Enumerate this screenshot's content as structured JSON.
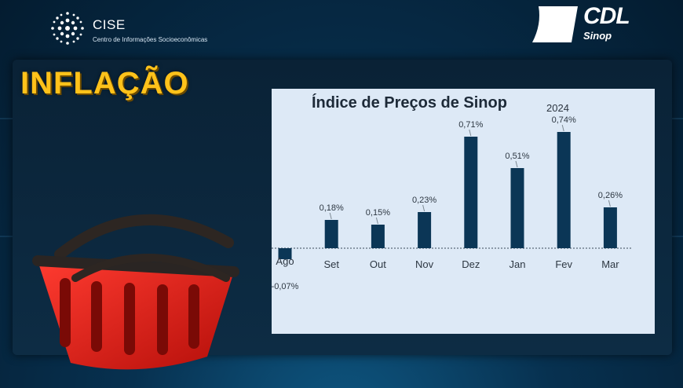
{
  "header": {
    "cise_name": "CISE",
    "cise_subtitle": "Centro de Informações Socioeconômicas",
    "cdl_name": "CDL",
    "cdl_city": "Sinop"
  },
  "banner_title": "INFLAÇÃO",
  "colors": {
    "title": "#ffc21a",
    "bar": "#0b3656",
    "card": "#dde9f6"
  },
  "chart_data": {
    "type": "bar",
    "title": "Índice de Preços de Sinop",
    "year_label": "2024",
    "categories": [
      "Ago",
      "Set",
      "Out",
      "Nov",
      "Dez",
      "Jan",
      "Fev",
      "Mar"
    ],
    "values": [
      -0.07,
      0.18,
      0.15,
      0.23,
      0.71,
      0.51,
      0.74,
      0.26
    ],
    "value_labels": [
      "-0,07%",
      "0,18%",
      "0,15%",
      "0,23%",
      "0,71%",
      "0,51%",
      "0,74%",
      "0,26%"
    ],
    "xlabel": "",
    "ylabel": "",
    "grid": false
  }
}
